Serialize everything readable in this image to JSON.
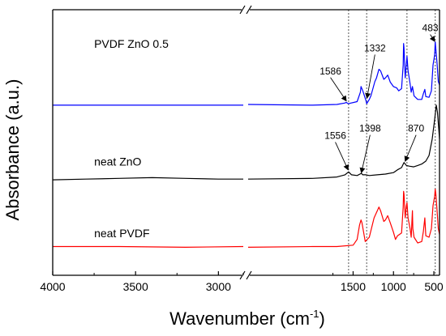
{
  "chart_data": {
    "type": "line",
    "xlabel_main": "Wavenumber (cm",
    "xlabel_sup": "-1",
    "xlabel_end": ")",
    "ylabel": "Absorbance (a.u.)",
    "x_ticks": [
      4000,
      3500,
      3000,
      1500,
      1000,
      500
    ],
    "x_break": [
      2850,
      2800
    ],
    "x_segments": [
      [
        4000,
        2850
      ],
      [
        2800,
        430
      ]
    ],
    "reference_lines": [
      1556,
      1332,
      833,
      483
    ],
    "series": [
      {
        "name": "PVDF ZnO 0.5",
        "color": "#0000ff",
        "offset": 2.0,
        "points": [
          [
            4000,
            0.02
          ],
          [
            3600,
            0.02
          ],
          [
            3200,
            0.02
          ],
          [
            2850,
            0.02
          ],
          [
            2800,
            0.03
          ],
          [
            2000,
            0.02
          ],
          [
            1700,
            0.03
          ],
          [
            1600,
            0.05
          ],
          [
            1586,
            0.06
          ],
          [
            1560,
            0.04
          ],
          [
            1450,
            0.07
          ],
          [
            1410,
            0.2
          ],
          [
            1402,
            0.28
          ],
          [
            1380,
            0.22
          ],
          [
            1340,
            0.08
          ],
          [
            1332,
            0.04
          ],
          [
            1300,
            0.1
          ],
          [
            1280,
            0.15
          ],
          [
            1230,
            0.35
          ],
          [
            1210,
            0.4
          ],
          [
            1180,
            0.52
          ],
          [
            1160,
            0.5
          ],
          [
            1120,
            0.38
          ],
          [
            1100,
            0.4
          ],
          [
            1072,
            0.44
          ],
          [
            1040,
            0.34
          ],
          [
            1000,
            0.28
          ],
          [
            960,
            0.26
          ],
          [
            935,
            0.22
          ],
          [
            900,
            0.25
          ],
          [
            880,
            0.58
          ],
          [
            875,
            0.88
          ],
          [
            870,
            0.82
          ],
          [
            855,
            0.4
          ],
          [
            840,
            0.6
          ],
          [
            833,
            0.7
          ],
          [
            820,
            0.5
          ],
          [
            795,
            0.32
          ],
          [
            780,
            0.2
          ],
          [
            765,
            0.28
          ],
          [
            745,
            0.15
          ],
          [
            700,
            0.1
          ],
          [
            650,
            0.1
          ],
          [
            630,
            0.18
          ],
          [
            612,
            0.24
          ],
          [
            600,
            0.14
          ],
          [
            560,
            0.13
          ],
          [
            530,
            0.22
          ],
          [
            510,
            0.58
          ],
          [
            490,
            0.72
          ],
          [
            483,
            0.9
          ],
          [
            475,
            0.8
          ],
          [
            460,
            0.6
          ],
          [
            445,
            0.35
          ],
          [
            430,
            0.3
          ]
        ]
      },
      {
        "name": "neat ZnO",
        "color": "#000000",
        "offset": 1.0,
        "points": [
          [
            4000,
            -0.02
          ],
          [
            3800,
            -0.01
          ],
          [
            3600,
            0.0
          ],
          [
            3400,
            0.01
          ],
          [
            3200,
            0.0
          ],
          [
            3000,
            -0.01
          ],
          [
            2850,
            -0.01
          ],
          [
            2800,
            -0.01
          ],
          [
            2000,
            0.0
          ],
          [
            1700,
            0.02
          ],
          [
            1600,
            0.05
          ],
          [
            1556,
            0.09
          ],
          [
            1520,
            0.05
          ],
          [
            1450,
            0.04
          ],
          [
            1398,
            0.07
          ],
          [
            1380,
            0.05
          ],
          [
            1340,
            0.05
          ],
          [
            1300,
            0.04
          ],
          [
            1200,
            0.05
          ],
          [
            1100,
            0.06
          ],
          [
            1000,
            0.08
          ],
          [
            950,
            0.12
          ],
          [
            900,
            0.15
          ],
          [
            870,
            0.22
          ],
          [
            840,
            0.18
          ],
          [
            800,
            0.17
          ],
          [
            750,
            0.16
          ],
          [
            700,
            0.18
          ],
          [
            650,
            0.2
          ],
          [
            600,
            0.24
          ],
          [
            560,
            0.32
          ],
          [
            520,
            0.55
          ],
          [
            490,
            0.82
          ],
          [
            470,
            1.02
          ],
          [
            455,
            0.92
          ],
          [
            440,
            0.7
          ],
          [
            430,
            0.55
          ]
        ]
      },
      {
        "name": "neat PVDF",
        "color": "#ff0000",
        "offset": 0.0,
        "points": [
          [
            4000,
            0.05
          ],
          [
            3600,
            0.05
          ],
          [
            3200,
            0.04
          ],
          [
            2850,
            0.05
          ],
          [
            2800,
            0.04
          ],
          [
            2000,
            0.05
          ],
          [
            1700,
            0.05
          ],
          [
            1500,
            0.07
          ],
          [
            1450,
            0.15
          ],
          [
            1420,
            0.35
          ],
          [
            1402,
            0.42
          ],
          [
            1390,
            0.38
          ],
          [
            1350,
            0.12
          ],
          [
            1300,
            0.18
          ],
          [
            1240,
            0.45
          ],
          [
            1200,
            0.55
          ],
          [
            1180,
            0.6
          ],
          [
            1160,
            0.55
          ],
          [
            1120,
            0.4
          ],
          [
            1100,
            0.42
          ],
          [
            1072,
            0.48
          ],
          [
            1040,
            0.38
          ],
          [
            1000,
            0.25
          ],
          [
            975,
            0.15
          ],
          [
            950,
            0.2
          ],
          [
            900,
            0.24
          ],
          [
            880,
            0.6
          ],
          [
            875,
            0.82
          ],
          [
            870,
            0.78
          ],
          [
            855,
            0.45
          ],
          [
            840,
            0.62
          ],
          [
            833,
            0.66
          ],
          [
            820,
            0.45
          ],
          [
            795,
            0.3
          ],
          [
            780,
            0.18
          ],
          [
            765,
            0.55
          ],
          [
            760,
            0.3
          ],
          [
            745,
            0.18
          ],
          [
            700,
            0.1
          ],
          [
            650,
            0.12
          ],
          [
            630,
            0.26
          ],
          [
            612,
            0.45
          ],
          [
            600,
            0.2
          ],
          [
            560,
            0.18
          ],
          [
            530,
            0.3
          ],
          [
            510,
            0.62
          ],
          [
            490,
            0.75
          ],
          [
            483,
            0.85
          ],
          [
            475,
            0.78
          ],
          [
            460,
            0.55
          ],
          [
            445,
            0.3
          ],
          [
            430,
            0.22
          ]
        ]
      }
    ],
    "labels": [
      {
        "text": "PVDF ZnO 0.5",
        "x": 3750,
        "y": 2.82
      },
      {
        "text": "neat ZnO",
        "x": 3750,
        "y": 1.18
      },
      {
        "text": "neat PVDF",
        "x": 3750,
        "y": 0.18
      }
    ],
    "annotations": [
      {
        "text": "1586",
        "label_x": 1780,
        "label_y": 2.45,
        "arrow_to": [
          1585,
          2.08
        ]
      },
      {
        "text": "1332",
        "label_x": 1230,
        "label_y": 2.77,
        "arrow_to": [
          1328,
          2.12
        ]
      },
      {
        "text": "483",
        "label_x": 545,
        "label_y": 3.05,
        "arrow_to": [
          490,
          2.91
        ]
      },
      {
        "text": "1556",
        "label_x": 1720,
        "label_y": 1.55,
        "arrow_to": [
          1562,
          1.12
        ]
      },
      {
        "text": "1398",
        "label_x": 1290,
        "label_y": 1.65,
        "arrow_to": [
          1398,
          1.08
        ]
      },
      {
        "text": "870",
        "label_x": 720,
        "label_y": 1.65,
        "arrow_to": [
          855,
          1.24
        ]
      }
    ],
    "ylim": [
      -0.35,
      3.35
    ],
    "grid": false,
    "y_ticks_visible": false
  }
}
